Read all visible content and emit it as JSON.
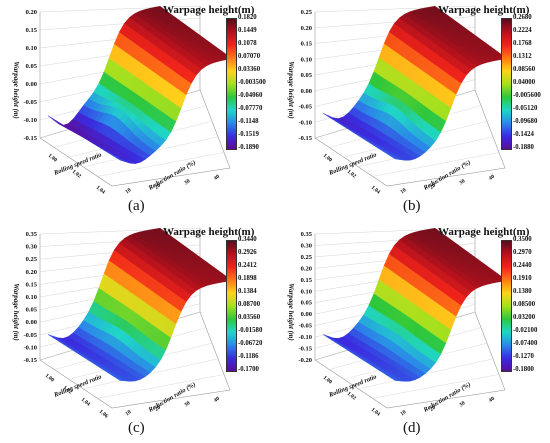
{
  "chart_data": [
    {
      "type": "surface",
      "caption": "(a)",
      "title": "Warpage height(m)",
      "zlabel": "Warpage height (m)",
      "xlabel": "Rolling speed ratio",
      "ylabel": "Reduction ratio (%)",
      "ztick_labels": [
        "0.20",
        "0.15",
        "0.10",
        "0.05",
        "0.00",
        "-0.05",
        "-0.10",
        "-0.15"
      ],
      "xtick_labels": [
        "1.00",
        "1.02",
        "1.04"
      ],
      "ytick_labels": [
        "10",
        "20",
        "30",
        "40"
      ],
      "colorbar_labels": [
        "0.1820",
        "0.1449",
        "0.1078",
        "0.07070",
        "0.03360",
        "-0.003500",
        "-0.04060",
        "-0.07770",
        "-0.1148",
        "-0.1519",
        "-0.1890"
      ],
      "zlim": [
        -0.189,
        0.182
      ]
    },
    {
      "type": "surface",
      "caption": "(b)",
      "title": "Warpage height(m)",
      "zlabel": "Warpage height (m)",
      "xlabel": "Rolling speed ratio",
      "ylabel": "Reduction ratio (%)",
      "ztick_labels": [
        "0.25",
        "0.20",
        "0.15",
        "0.10",
        "0.05",
        "0.00",
        "-0.05",
        "-0.10",
        "-0.15"
      ],
      "xtick_labels": [
        "1.00",
        "1.02",
        "1.04"
      ],
      "ytick_labels": [
        "10",
        "20",
        "30",
        "40"
      ],
      "colorbar_labels": [
        "0.2680",
        "0.2224",
        "0.1768",
        "0.1312",
        "0.08560",
        "0.04000",
        "-0.005600",
        "-0.05120",
        "-0.09680",
        "-0.1424",
        "-0.1880"
      ],
      "zlim": [
        -0.188,
        0.268
      ]
    },
    {
      "type": "surface",
      "caption": "(c)",
      "title": "Warpage height(m)",
      "zlabel": "Warpage height (m)",
      "xlabel": "Rolling speed ratio",
      "ylabel": "Reduction ratio (%)",
      "ztick_labels": [
        "0.35",
        "0.30",
        "0.25",
        "0.20",
        "0.15",
        "0.10",
        "0.05",
        "0.00",
        "-0.05",
        "-0.10",
        "-0.15"
      ],
      "xtick_labels": [
        "1.00",
        "1.02",
        "1.04",
        "1.06"
      ],
      "ytick_labels": [
        "10",
        "20",
        "30",
        "40"
      ],
      "colorbar_labels": [
        "0.3440",
        "0.2926",
        "0.2412",
        "0.1898",
        "0.1384",
        "0.08700",
        "0.03560",
        "-0.01580",
        "-0.06720",
        "-0.1186",
        "-0.1700"
      ],
      "zlim": [
        -0.17,
        0.344
      ]
    },
    {
      "type": "surface",
      "caption": "(d)",
      "title": "Warpage height(m)",
      "zlabel": "Warpage height (m)",
      "xlabel": "Rolling speed ratio",
      "ylabel": "Reduction ratio (%)",
      "ztick_labels": [
        "0.35",
        "0.30",
        "0.25",
        "0.20",
        "0.15",
        "0.10",
        "0.05",
        "0.00",
        "-0.05",
        "-0.10",
        "-0.15",
        "-0.20"
      ],
      "xtick_labels": [
        "1.00",
        "1.02",
        "1.04"
      ],
      "ytick_labels": [
        "10",
        "20",
        "30",
        "40"
      ],
      "colorbar_labels": [
        "0.3500",
        "0.2970",
        "0.2440",
        "0.1910",
        "0.1380",
        "0.08500",
        "0.03200",
        "-0.02100",
        "-0.07400",
        "-0.1270",
        "-0.1800"
      ],
      "zlim": [
        -0.18,
        0.35
      ]
    }
  ],
  "colormap": [
    "#5a0c1c",
    "#b5111c",
    "#f0231a",
    "#ff7a15",
    "#ffd21a",
    "#a6e01e",
    "#2fc73a",
    "#1fd6c8",
    "#2a8ae8",
    "#3a2ce0",
    "#5b0d9a"
  ]
}
